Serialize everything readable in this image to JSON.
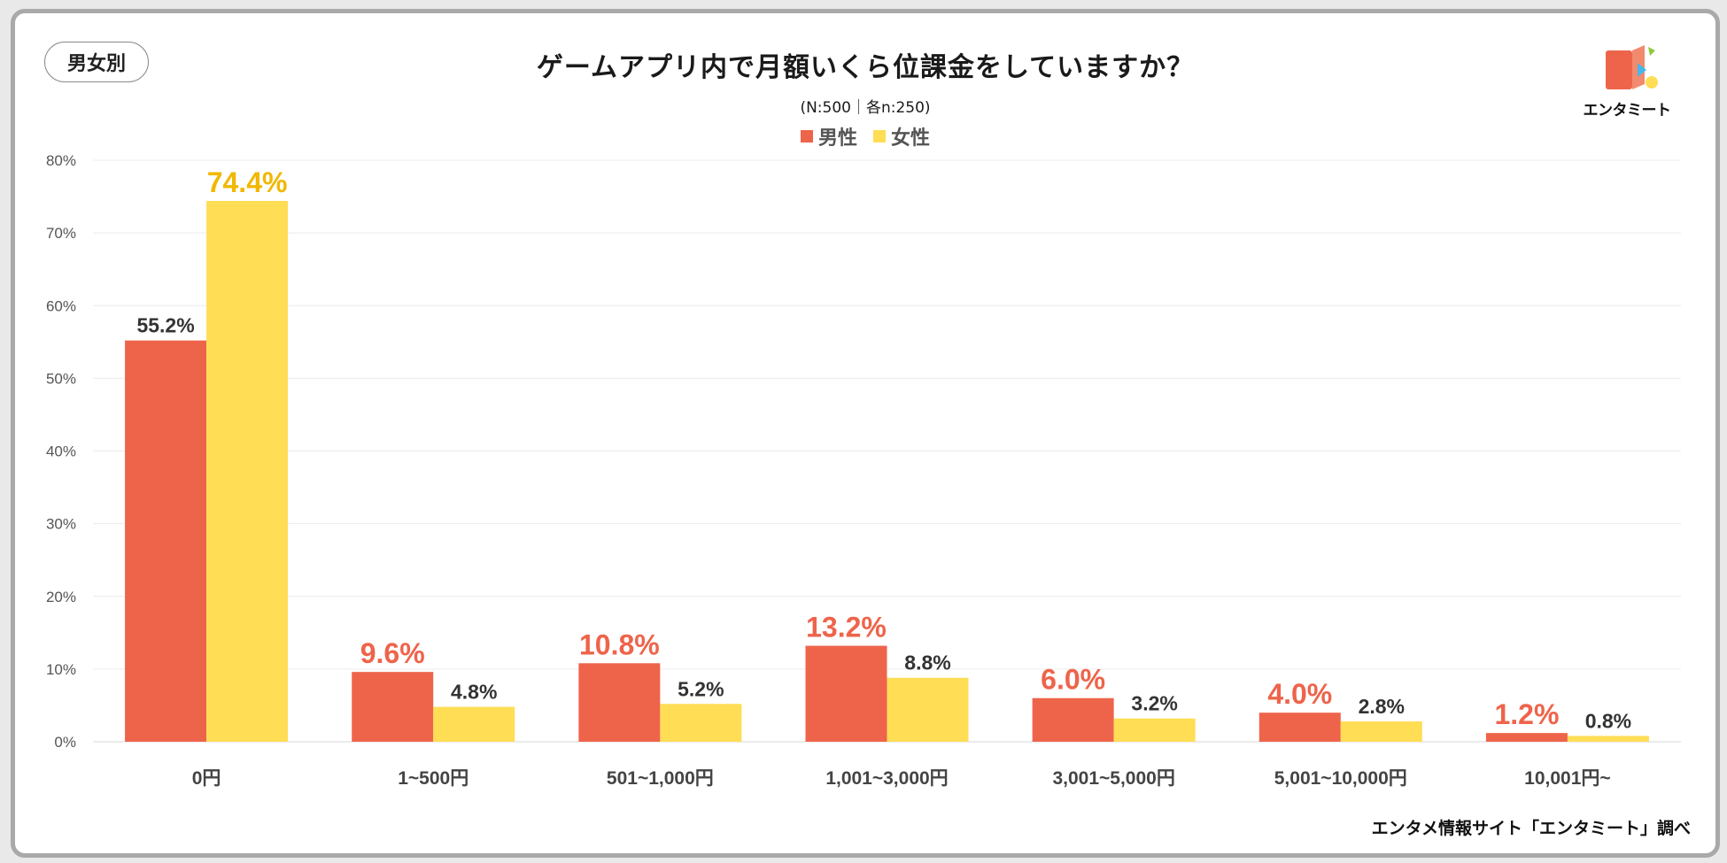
{
  "badge": "男女別",
  "title": "ゲームアプリ内で月額いくら位課金をしていますか？",
  "subtitle": "(N:500｜各n:250)",
  "logo_text": "エンタミート",
  "source": "エンタメ情報サイト「エンタミート」調べ",
  "colors": {
    "male": "#EE644B",
    "female": "#FFDD55",
    "female_highlight_label": "#F0B800",
    "label_dark": "#333333"
  },
  "chart_data": {
    "type": "bar",
    "title": "ゲームアプリ内で月額いくら位課金をしていますか？",
    "categories": [
      "0円",
      "1~500円",
      "501~1,000円",
      "1,001~3,000円",
      "3,001~5,000円",
      "5,001~10,000円",
      "10,001円~"
    ],
    "series": [
      {
        "name": "男性",
        "values": [
          55.2,
          9.6,
          10.8,
          13.2,
          6.0,
          4.0,
          1.2
        ],
        "labels": [
          "55.2%",
          "9.6%",
          "10.8%",
          "13.2%",
          "6.0%",
          "4.0%",
          "1.2%"
        ],
        "highlight": [
          false,
          true,
          true,
          true,
          true,
          true,
          true
        ]
      },
      {
        "name": "女性",
        "values": [
          74.4,
          4.8,
          5.2,
          8.8,
          3.2,
          2.8,
          0.8
        ],
        "labels": [
          "74.4%",
          "4.8%",
          "5.2%",
          "8.8%",
          "3.2%",
          "2.8%",
          "0.8%"
        ],
        "highlight": [
          true,
          false,
          false,
          false,
          false,
          false,
          false
        ]
      }
    ],
    "y_ticks": [
      "0%",
      "10%",
      "20%",
      "30%",
      "40%",
      "50%",
      "60%",
      "70%",
      "80%"
    ],
    "ylim": [
      0,
      80
    ],
    "ylabel": "",
    "xlabel": "",
    "grid": true,
    "legend": "top-center"
  }
}
